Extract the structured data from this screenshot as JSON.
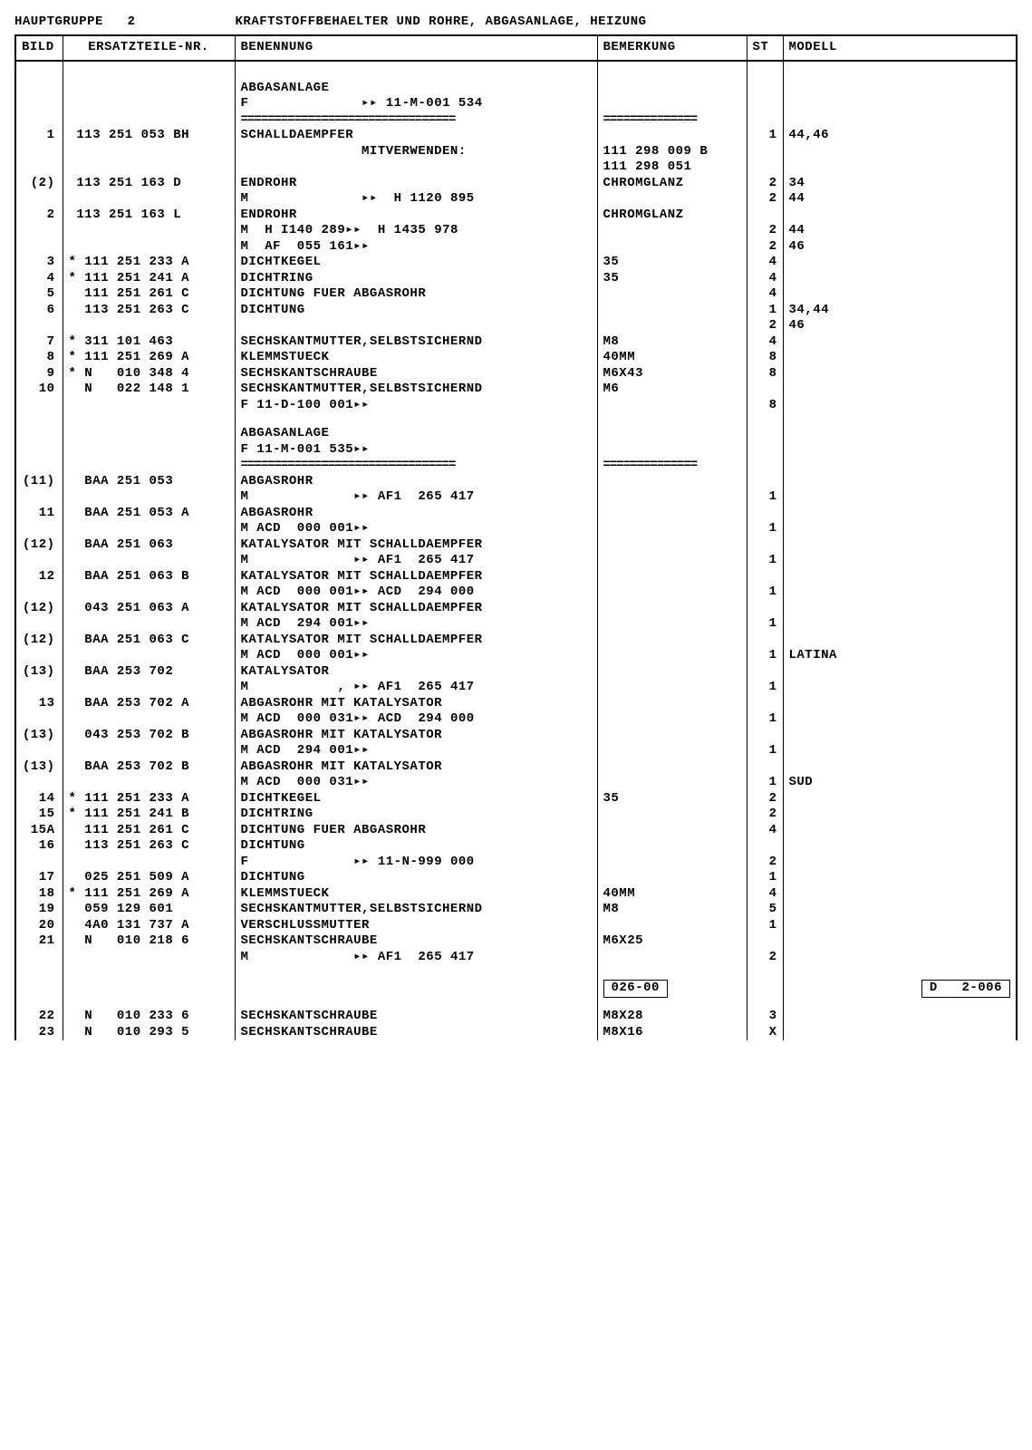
{
  "header": {
    "hauptgruppe_label": "HAUPTGRUPPE   2",
    "title": "KRAFTSTOFFBEHAELTER UND ROHRE, ABGASANLAGE, HEIZUNG"
  },
  "columns": {
    "bild": "BILD",
    "ersatz": "ERSATZTEILE-NR.",
    "ben": "BENENNUNG",
    "bem": "BEMERKUNG",
    "st": "ST",
    "mod": "MODELL"
  },
  "footer": {
    "left": "026-00",
    "right": "D   2-006"
  },
  "rows": [
    {
      "b": "",
      "e": "",
      "n": "ABGASANLAGE",
      "m": "",
      "s": "",
      "d": ""
    },
    {
      "b": "",
      "e": "",
      "n": "F              ▸▸ 11-M-001 534",
      "m": "",
      "s": "",
      "d": ""
    },
    {
      "b": "1",
      "e": " 113 251 053 BH",
      "n": "SCHALLDAEMPFER",
      "m": "",
      "s": "1",
      "d": "44,46"
    },
    {
      "b": "",
      "e": "",
      "n": "               MITVERWENDEN:",
      "m": "111 298 009 B",
      "s": "",
      "d": ""
    },
    {
      "b": "",
      "e": "",
      "n": "",
      "m": "111 298 051",
      "s": "",
      "d": ""
    },
    {
      "b": "(2)",
      "e": " 113 251 163 D",
      "n": "ENDROHR",
      "m": "CHROMGLANZ",
      "s": "2",
      "d": "34"
    },
    {
      "b": "",
      "e": "",
      "n": "M              ▸▸  H 1120 895",
      "m": "",
      "s": "2",
      "d": "44"
    },
    {
      "b": "2",
      "e": " 113 251 163 L",
      "n": "ENDROHR",
      "m": "CHROMGLANZ",
      "s": "",
      "d": ""
    },
    {
      "b": "",
      "e": "",
      "n": "M  H I140 289▸▸  H 1435 978",
      "m": "",
      "s": "2",
      "d": "44"
    },
    {
      "b": "",
      "e": "",
      "n": "M  AF  055 161▸▸",
      "m": "",
      "s": "2",
      "d": "46"
    },
    {
      "b": "3",
      "e": "* 111 251 233 A",
      "n": "DICHTKEGEL",
      "m": "35",
      "s": "4",
      "d": ""
    },
    {
      "b": "4",
      "e": "* 111 251 241 A",
      "n": "DICHTRING",
      "m": "35",
      "s": "4",
      "d": ""
    },
    {
      "b": "5",
      "e": "  111 251 261 C",
      "n": "DICHTUNG FUER ABGASROHR",
      "m": "",
      "s": "4",
      "d": ""
    },
    {
      "b": "6",
      "e": "  113 251 263 C",
      "n": "DICHTUNG",
      "m": "",
      "s": "1",
      "d": "34,44"
    },
    {
      "b": "",
      "e": "",
      "n": "",
      "m": "",
      "s": "2",
      "d": "46"
    },
    {
      "b": "7",
      "e": "* 311 101 463",
      "n": "SECHSKANTMUTTER,SELBSTSICHERND",
      "m": "M8",
      "s": "4",
      "d": ""
    },
    {
      "b": "8",
      "e": "* 111 251 269 A",
      "n": "KLEMMSTUECK",
      "m": "40MM",
      "s": "8",
      "d": ""
    },
    {
      "b": "9",
      "e": "* N   010 348 4",
      "n": "SECHSKANTSCHRAUBE",
      "m": "M6X43",
      "s": "8",
      "d": ""
    },
    {
      "b": "10",
      "e": "  N   022 148 1",
      "n": "SECHSKANTMUTTER,SELBSTSICHERND",
      "m": "M6",
      "s": "",
      "d": ""
    },
    {
      "b": "",
      "e": "",
      "n": "F 11-D-100 001▸▸",
      "m": "",
      "s": "8",
      "d": ""
    },
    {
      "b": "",
      "e": "",
      "n": "ABGASANLAGE",
      "m": "",
      "s": "",
      "d": ""
    },
    {
      "b": "",
      "e": "",
      "n": "F 11-M-001 535▸▸",
      "m": "",
      "s": "",
      "d": ""
    },
    {
      "b": "(11)",
      "e": "  BAA 251 053",
      "n": "ABGASROHR",
      "m": "",
      "s": "",
      "d": ""
    },
    {
      "b": "",
      "e": "",
      "n": "M             ▸▸ AF1  265 417",
      "m": "",
      "s": "1",
      "d": ""
    },
    {
      "b": "11",
      "e": "  BAA 251 053 A",
      "n": "ABGASROHR",
      "m": "",
      "s": "",
      "d": ""
    },
    {
      "b": "",
      "e": "",
      "n": "M ACD  000 001▸▸",
      "m": "",
      "s": "1",
      "d": ""
    },
    {
      "b": "(12)",
      "e": "  BAA 251 063",
      "n": "KATALYSATOR MIT SCHALLDAEMPFER",
      "m": "",
      "s": "",
      "d": ""
    },
    {
      "b": "",
      "e": "",
      "n": "M             ▸▸ AF1  265 417",
      "m": "",
      "s": "1",
      "d": ""
    },
    {
      "b": "12",
      "e": "  BAA 251 063 B",
      "n": "KATALYSATOR MIT SCHALLDAEMPFER",
      "m": "",
      "s": "",
      "d": ""
    },
    {
      "b": "",
      "e": "",
      "n": "M ACD  000 001▸▸ ACD  294 000",
      "m": "",
      "s": "1",
      "d": ""
    },
    {
      "b": "(12)",
      "e": "  043 251 063 A",
      "n": "KATALYSATOR MIT SCHALLDAEMPFER",
      "m": "",
      "s": "",
      "d": ""
    },
    {
      "b": "",
      "e": "",
      "n": "M ACD  294 001▸▸",
      "m": "",
      "s": "1",
      "d": ""
    },
    {
      "b": "(12)",
      "e": "  BAA 251 063 C",
      "n": "KATALYSATOR MIT SCHALLDAEMPFER",
      "m": "",
      "s": "",
      "d": ""
    },
    {
      "b": "",
      "e": "",
      "n": "M ACD  000 001▸▸",
      "m": "",
      "s": "1",
      "d": "LATINA"
    },
    {
      "b": "(13)",
      "e": "  BAA 253 702",
      "n": "KATALYSATOR",
      "m": "",
      "s": "",
      "d": ""
    },
    {
      "b": "",
      "e": "",
      "n": "M           , ▸▸ AF1  265 417",
      "m": "",
      "s": "1",
      "d": ""
    },
    {
      "b": "13",
      "e": "  BAA 253 702 A",
      "n": "ABGASROHR MIT KATALYSATOR",
      "m": "",
      "s": "",
      "d": ""
    },
    {
      "b": "",
      "e": "",
      "n": "M ACD  000 031▸▸ ACD  294 000",
      "m": "",
      "s": "1",
      "d": ""
    },
    {
      "b": "(13)",
      "e": "  043 253 702 B",
      "n": "ABGASROHR MIT KATALYSATOR",
      "m": "",
      "s": "",
      "d": ""
    },
    {
      "b": "",
      "e": "",
      "n": "M ACD  294 001▸▸",
      "m": "",
      "s": "1",
      "d": ""
    },
    {
      "b": "(13)",
      "e": "  BAA 253 702 B",
      "n": "ABGASROHR MIT KATALYSATOR",
      "m": "",
      "s": "",
      "d": ""
    },
    {
      "b": "",
      "e": "",
      "n": "M ACD  000 031▸▸",
      "m": "",
      "s": "1",
      "d": "SUD"
    },
    {
      "b": "14",
      "e": "* 111 251 233 A",
      "n": "DICHTKEGEL",
      "m": "35",
      "s": "2",
      "d": ""
    },
    {
      "b": "15",
      "e": "* 111 251 241 B",
      "n": "DICHTRING",
      "m": "",
      "s": "2",
      "d": ""
    },
    {
      "b": "15A",
      "e": "  111 251 261 C",
      "n": "DICHTUNG FUER ABGASROHR",
      "m": "",
      "s": "4",
      "d": ""
    },
    {
      "b": "16",
      "e": "  113 251 263 C",
      "n": "DICHTUNG",
      "m": "",
      "s": "",
      "d": ""
    },
    {
      "b": "",
      "e": "",
      "n": "F             ▸▸ 11-N-999 000",
      "m": "",
      "s": "2",
      "d": ""
    },
    {
      "b": "17",
      "e": "  025 251 509 A",
      "n": "DICHTUNG",
      "m": "",
      "s": "1",
      "d": ""
    },
    {
      "b": "18",
      "e": "* 111 251 269 A",
      "n": "KLEMMSTUECK",
      "m": "40MM",
      "s": "4",
      "d": ""
    },
    {
      "b": "19",
      "e": "  059 129 601",
      "n": "SECHSKANTMUTTER,SELBSTSICHERND",
      "m": "M8",
      "s": "5",
      "d": ""
    },
    {
      "b": "20",
      "e": "  4A0 131 737 A",
      "n": "VERSCHLUSSMUTTER",
      "m": "",
      "s": "1",
      "d": ""
    },
    {
      "b": "21",
      "e": "  N   010 218 6",
      "n": "SECHSKANTSCHRAUBE",
      "m": "M6X25",
      "s": "",
      "d": ""
    },
    {
      "b": "",
      "e": "",
      "n": "M             ▸▸ AF1  265 417",
      "m": "",
      "s": "2",
      "d": ""
    },
    {
      "b": "22",
      "e": "  N   010 233 6",
      "n": "SECHSKANTSCHRAUBE",
      "m": "M8X28",
      "s": "3",
      "d": ""
    },
    {
      "b": "23",
      "e": "  N   010 293 5",
      "n": "SECHSKANTSCHRAUBE",
      "m": "M8X16",
      "s": "X",
      "d": ""
    }
  ]
}
